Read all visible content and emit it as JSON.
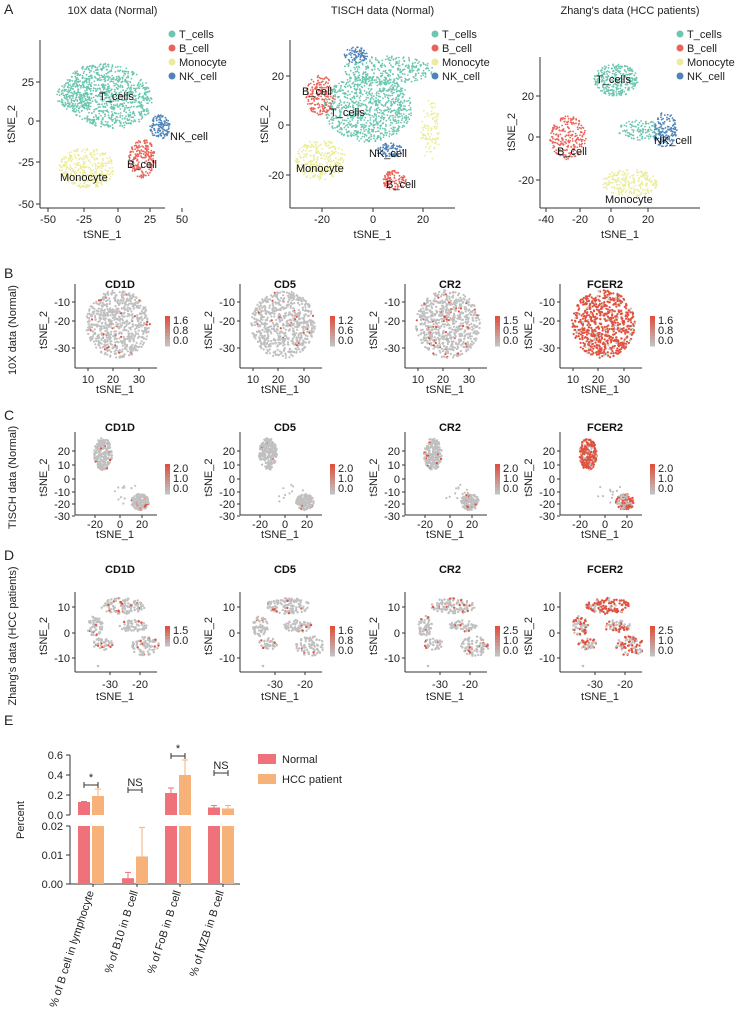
{
  "figure": {
    "panel_labels": [
      "A",
      "B",
      "C",
      "D",
      "E"
    ],
    "colors": {
      "T_cells": "#6cc7b0",
      "B_cell": "#e8645a",
      "Monocyte": "#ecec9c",
      "NK_cell": "#4f84b8",
      "grey": "#c0c0c0",
      "expr": "#e0523f",
      "Normal": "#ef727b",
      "HCC patient": "#f7b27a"
    }
  },
  "panel_a": {
    "panels": [
      {
        "title": "10X data (Normal)",
        "xlabel": "tSNE_1",
        "ylabel": "tSNE_2",
        "xticks": [
          "-50",
          "-25",
          "0",
          "25",
          "50"
        ],
        "yticks": [
          "25",
          "0",
          "-25",
          "-50"
        ],
        "legend": [
          "T_cells",
          "B_cell",
          "Monocyte",
          "NK_cell"
        ],
        "cluster_labels": [
          "T_cells",
          "NK_cell",
          "B_cell",
          "Monocyte"
        ]
      },
      {
        "title": "TISCH data (Normal)",
        "xlabel": "tSNE_1",
        "ylabel": "tSNE_2",
        "xticks": [
          "-20",
          "0",
          "20"
        ],
        "yticks": [
          "20",
          "0",
          "-20"
        ],
        "legend": [
          "T_cells",
          "B_cell",
          "Monocyte",
          "NK_cell"
        ],
        "cluster_labels": [
          "B_cell",
          "T_cells",
          "Monocyte",
          "NK_cell",
          "B_cell"
        ]
      },
      {
        "title": "Zhang's data (HCC patients)",
        "xlabel": "tSNE_1",
        "ylabel": "tSNE_2",
        "xticks": [
          "-40",
          "-20",
          "0",
          "20"
        ],
        "yticks": [
          "20",
          "0",
          "-20"
        ],
        "legend": [
          "T_cells",
          "B_cell",
          "Monocyte",
          "NK_cell"
        ],
        "cluster_labels": [
          "T_cells",
          "B_cell",
          "NK_cell",
          "Monocyte"
        ]
      }
    ]
  },
  "feature_rows": [
    {
      "row_label": "10X data (Normal)",
      "xticks": [
        "10",
        "20",
        "30"
      ],
      "yticks": [
        "-10",
        "-20",
        "-30"
      ],
      "xlabel": "tSNE_1",
      "ylabel": "tSNE_2",
      "genes": [
        {
          "name": "CD1D",
          "scale": [
            "1.6",
            "0.8",
            "0.0"
          ]
        },
        {
          "name": "CD5",
          "scale": [
            "1.2",
            "0.6",
            "0.0"
          ]
        },
        {
          "name": "CR2",
          "scale": [
            "1.5",
            "0.5",
            "0.0"
          ]
        },
        {
          "name": "FCER2",
          "scale": [
            "1.6",
            "0.8",
            "0.0"
          ]
        }
      ]
    },
    {
      "row_label": "TISCH data (Normal)",
      "xticks": [
        "-20",
        "0",
        "20"
      ],
      "yticks": [
        "20",
        "10",
        "0",
        "-10",
        "-20",
        "-30"
      ],
      "xlabel": "tSNE_1",
      "ylabel": "tSNE_2",
      "genes": [
        {
          "name": "CD1D",
          "scale": [
            "2.0",
            "1.0",
            "0.0"
          ]
        },
        {
          "name": "CD5",
          "scale": [
            "2.0",
            "1.0",
            "0.0"
          ]
        },
        {
          "name": "CR2",
          "scale": [
            "2.0",
            "1.0",
            "0.0"
          ]
        },
        {
          "name": "FCER2",
          "scale": [
            "2.0",
            "1.0",
            "0.0"
          ]
        }
      ]
    },
    {
      "row_label": "Zhang's data (HCC patients)",
      "xticks": [
        "-30",
        "-20"
      ],
      "yticks": [
        "10",
        "0",
        "-10"
      ],
      "xlabel": "tSNE_1",
      "ylabel": "tSNE_2",
      "genes": [
        {
          "name": "CD1D",
          "scale": [
            "1.5",
            "0.0"
          ]
        },
        {
          "name": "CD5",
          "scale": [
            "1.6",
            "0.8",
            "0.0"
          ]
        },
        {
          "name": "CR2",
          "scale": [
            "2.5",
            "1.0",
            "0.0"
          ]
        },
        {
          "name": "FCER2",
          "scale": [
            "2.5",
            "1.0",
            "0.0"
          ]
        }
      ]
    }
  ],
  "chart_data": {
    "type": "bar",
    "title": "",
    "xlabel": "",
    "ylabel": "Percent",
    "categories": [
      "% of B cell in lymphocyte",
      "% of  B10 in B cell",
      "% of  FoB in B cell",
      "% of  MZB in B cell"
    ],
    "series": [
      {
        "name": "Normal",
        "values": [
          0.13,
          0.002,
          0.22,
          0.075
        ],
        "errors": [
          0.005,
          0.002,
          0.05,
          0.02
        ]
      },
      {
        "name": "HCC patient",
        "values": [
          0.19,
          0.0095,
          0.4,
          0.065
        ],
        "errors": [
          0.07,
          0.01,
          0.15,
          0.03
        ]
      }
    ],
    "y_axis_break": {
      "lower_range": [
        0,
        0.02
      ],
      "upper_range": [
        0.02,
        0.6
      ]
    },
    "yticks_upper": [
      "0.6",
      "0.4",
      "0.2",
      "0.0"
    ],
    "yticks_lower": [
      "0.02",
      "0.01",
      "0.00"
    ],
    "significance": [
      "*",
      "NS",
      "*",
      "NS"
    ]
  }
}
